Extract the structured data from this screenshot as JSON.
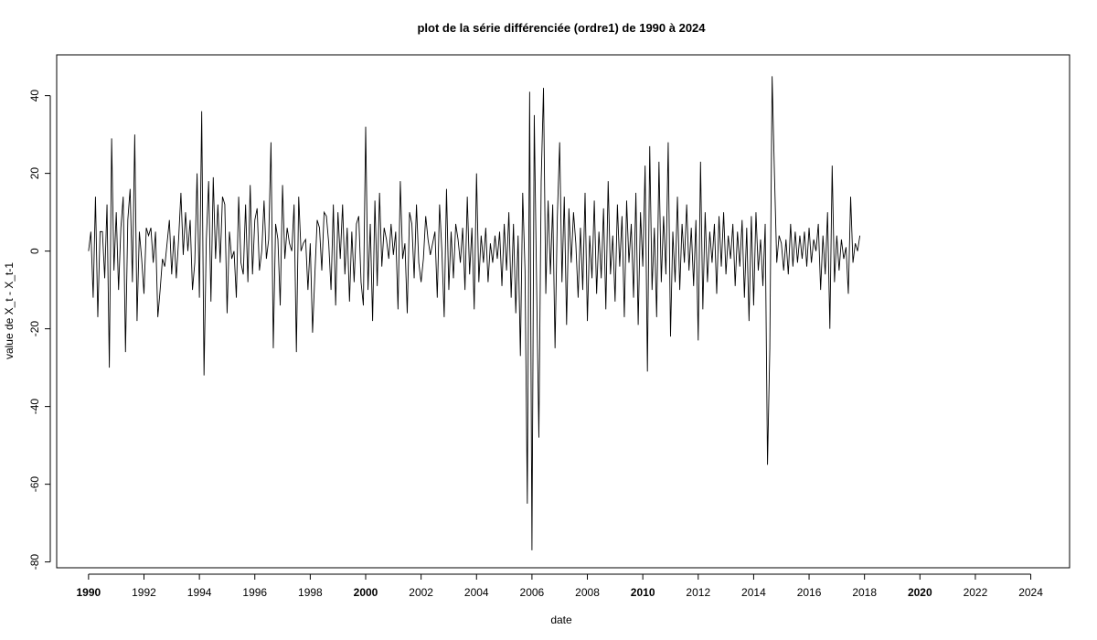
{
  "chart_data": {
    "type": "line",
    "title": "plot de la série différenciée (ordre1) de 1990 à 2024",
    "xlabel": "date",
    "ylabel": "value de X_t - X_t-1",
    "xlim": [
      1988.85,
      2025.4
    ],
    "ylim": [
      -81.5,
      50.5
    ],
    "x_start": 1990.0,
    "x_step": 0.0833333,
    "x_ticks": [
      1990,
      1992,
      1994,
      1996,
      1998,
      2000,
      2002,
      2004,
      2006,
      2008,
      2010,
      2012,
      2014,
      2016,
      2018,
      2020,
      2022,
      2024
    ],
    "x_tick_labels": [
      "1990",
      "1992",
      "1994",
      "1996",
      "1998",
      "2000",
      "2002",
      "2004",
      "2006",
      "2008",
      "2010",
      "2012",
      "2014",
      "2016",
      "2018",
      "2020",
      "2022",
      "2024"
    ],
    "y_ticks": [
      -80,
      -60,
      -40,
      -20,
      0,
      20,
      40
    ],
    "y_tick_labels": [
      "-80",
      "-60",
      "-40",
      "-20",
      "0",
      "20",
      "40"
    ],
    "grid": false,
    "line_color": "#000000",
    "series": [
      {
        "values": [
          0,
          5,
          -12,
          14,
          -17,
          5,
          5,
          -7,
          12,
          -30,
          29,
          -5,
          10,
          -10,
          6,
          14,
          -26,
          8,
          16,
          -8,
          30,
          -18,
          5,
          -2,
          -11,
          6,
          4,
          6,
          -3,
          5,
          -17,
          -10,
          -2,
          -4,
          2,
          8,
          -6,
          4,
          -7,
          3,
          15,
          -1,
          10,
          0,
          8,
          -10,
          -3,
          20,
          -12,
          36,
          -32,
          3,
          18,
          -13,
          19,
          -2,
          12,
          -3,
          14,
          12,
          -16,
          5,
          -2,
          0,
          -12,
          14,
          -3,
          -6,
          12,
          -8,
          17,
          -6,
          8,
          11,
          -5,
          0,
          13,
          -2,
          3,
          28,
          -25,
          7,
          3,
          -14,
          17,
          -2,
          6,
          2,
          0,
          12,
          -26,
          14,
          0,
          2,
          3,
          -10,
          2,
          -21,
          -6,
          8,
          6,
          -5,
          10,
          9,
          2,
          -10,
          12,
          -14,
          10,
          -2,
          12,
          -6,
          6,
          -13,
          5,
          -8,
          7,
          9,
          -8,
          -14,
          32,
          -10,
          7,
          -18,
          13,
          -9,
          15,
          -4,
          6,
          3,
          -2,
          7,
          -1,
          5,
          -15,
          18,
          -2,
          2,
          -16,
          10,
          7,
          -7,
          12,
          -3,
          -8,
          -2,
          9,
          3,
          -1,
          2,
          5,
          -12,
          12,
          0,
          -17,
          16,
          -10,
          5,
          -7,
          7,
          3,
          -3,
          6,
          -10,
          14,
          -6,
          6,
          -15,
          20,
          -8,
          4,
          -3,
          6,
          -8,
          2,
          -3,
          4,
          -2,
          5,
          -9,
          7,
          -5,
          10,
          -12,
          7,
          -16,
          4,
          -27,
          15,
          -5,
          -65,
          41,
          -77,
          35,
          -8,
          -48,
          18,
          42,
          -11,
          13,
          -6,
          12,
          -25,
          9,
          28,
          -8,
          14,
          -19,
          11,
          -3,
          10,
          2,
          -12,
          6,
          -10,
          15,
          -18,
          4,
          -7,
          13,
          -11,
          5,
          -7,
          11,
          -15,
          18,
          -6,
          4,
          -13,
          12,
          -4,
          9,
          -17,
          13,
          -3,
          7,
          -12,
          15,
          -19,
          10,
          -4,
          22,
          -31,
          27,
          -10,
          6,
          -17,
          23,
          -8,
          9,
          -6,
          28,
          -22,
          5,
          -8,
          14,
          -10,
          7,
          -3,
          12,
          -5,
          6,
          -9,
          8,
          -23,
          23,
          -15,
          10,
          -8,
          5,
          -3,
          7,
          -11,
          9,
          -4,
          10,
          -6,
          4,
          -2,
          7,
          -9,
          5,
          -4,
          8,
          -12,
          6,
          -18,
          9,
          -14,
          10,
          -5,
          3,
          -9,
          7,
          -55,
          -25,
          45,
          20,
          -3,
          4,
          2,
          -5,
          3,
          -6,
          7,
          -4,
          5,
          -3,
          4,
          -2,
          5,
          -4,
          6,
          -3,
          3,
          0,
          7,
          -10,
          4,
          -6,
          10,
          -20,
          22,
          -8,
          4,
          -5,
          3,
          -2,
          1,
          -11,
          14,
          -3,
          2,
          0,
          4
        ]
      }
    ]
  }
}
